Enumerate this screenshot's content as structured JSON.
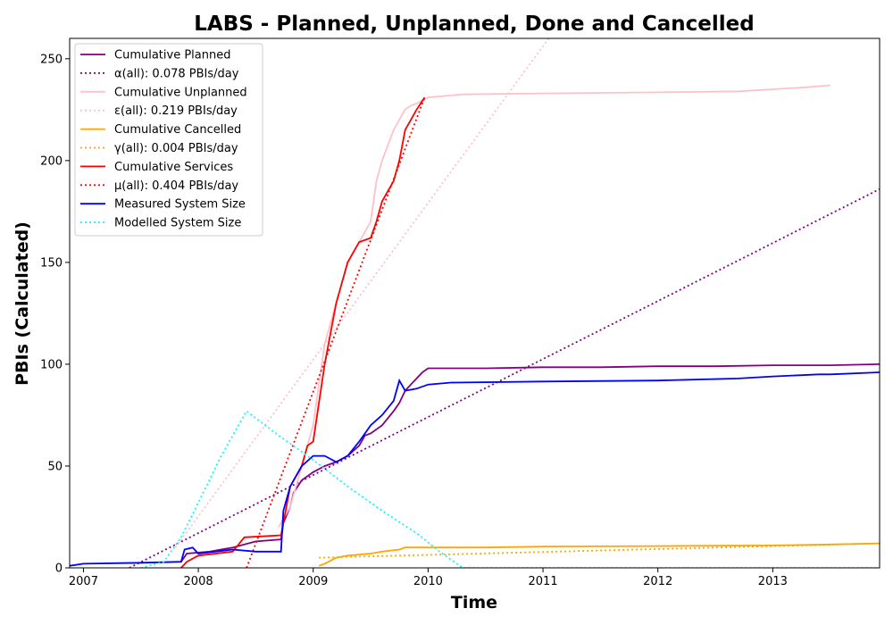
{
  "chart_data": {
    "type": "line",
    "title": "LABS - Planned, Unplanned, Done  and Cancelled",
    "xlabel": "Time",
    "ylabel": "PBIs (Calculated)",
    "xlim": [
      2006.88,
      2013.93
    ],
    "ylim": [
      0,
      260
    ],
    "x_ticks": [
      2007,
      2008,
      2009,
      2010,
      2011,
      2012,
      2013
    ],
    "x_tick_labels": [
      "2007",
      "2008",
      "2009",
      "2010",
      "2011",
      "2012",
      "2013"
    ],
    "y_ticks": [
      0,
      50,
      100,
      150,
      200,
      250
    ],
    "y_tick_labels": [
      "0",
      "50",
      "100",
      "150",
      "200",
      "250"
    ],
    "grid": false,
    "legend_position": "top-left",
    "series": [
      {
        "name": "Cumulative Planned",
        "color": "#800080",
        "style": "solid",
        "x": [
          2007.85,
          2007.9,
          2008.1,
          2008.3,
          2008.5,
          2008.72,
          2008.74,
          2008.8,
          2008.83,
          2008.9,
          2009.0,
          2009.1,
          2009.2,
          2009.3,
          2009.4,
          2009.45,
          2009.5,
          2009.6,
          2009.7,
          2009.75,
          2009.8,
          2009.85,
          2009.9,
          2009.95,
          2010.0,
          2010.5,
          2011.0,
          2011.5,
          2012.0,
          2012.5,
          2013.0,
          2013.5,
          2013.93
        ],
        "y": [
          3,
          7,
          8,
          10,
          13,
          14,
          22,
          30,
          37,
          43,
          47,
          50,
          52,
          55,
          60,
          65,
          66,
          70,
          77,
          81,
          87,
          90,
          93,
          96,
          98,
          98,
          98.5,
          98.5,
          99,
          99,
          99.5,
          99.5,
          100
        ]
      },
      {
        "name": "α(all): 0.078 PBIs/day",
        "color": "#800080",
        "style": "dotted",
        "x": [
          2007.4,
          2013.93
        ],
        "y": [
          0,
          186
        ]
      },
      {
        "name": "Cumulative Unplanned",
        "color": "#ffc0cb",
        "style": "solid",
        "x": [
          2008.7,
          2008.8,
          2008.9,
          2009.0,
          2009.1,
          2009.2,
          2009.3,
          2009.4,
          2009.5,
          2009.55,
          2009.6,
          2009.7,
          2009.75,
          2009.8,
          2009.85,
          2009.9,
          2010.0,
          2010.3,
          2011.0,
          2012.0,
          2012.7,
          2013.0,
          2013.3,
          2013.5
        ],
        "y": [
          20,
          30,
          50,
          70,
          110,
          130,
          150,
          160,
          170,
          190,
          200,
          215,
          220,
          225,
          227,
          228,
          231,
          232.5,
          233,
          233.5,
          234,
          235,
          236,
          237
        ]
      },
      {
        "name": "ε(all): 0.219 PBIs/day",
        "color": "#ffc0cb",
        "style": "dotted",
        "x": [
          2007.8,
          2011.05
        ],
        "y": [
          10,
          260
        ]
      },
      {
        "name": "Cumulative Cancelled",
        "color": "#ffa500",
        "style": "solid",
        "x": [
          2009.05,
          2009.1,
          2009.2,
          2009.3,
          2009.5,
          2009.6,
          2009.75,
          2009.8,
          2010.0,
          2010.5,
          2011.0,
          2012.0,
          2013.0,
          2013.5,
          2013.93
        ],
        "y": [
          1,
          2,
          5,
          6,
          7,
          8,
          9,
          10,
          10,
          10,
          10.5,
          10.7,
          11,
          11.5,
          12
        ]
      },
      {
        "name": "γ(all): 0.004 PBIs/day",
        "color": "#ffa500",
        "style": "dotted",
        "x": [
          2009.05,
          2013.93
        ],
        "y": [
          5,
          12
        ]
      },
      {
        "name": "Cumulative Services",
        "color": "#ff0000",
        "style": "solid",
        "x": [
          2007.85,
          2007.9,
          2008.0,
          2008.3,
          2008.4,
          2008.72,
          2008.74,
          2008.8,
          2008.85,
          2008.9,
          2008.95,
          2009.0,
          2009.1,
          2009.2,
          2009.3,
          2009.4,
          2009.5,
          2009.55,
          2009.6,
          2009.7,
          2009.75,
          2009.8,
          2009.9,
          2009.97
        ],
        "y": [
          0,
          3,
          6,
          8,
          15,
          16,
          22,
          40,
          45,
          50,
          60,
          62,
          100,
          130,
          150,
          160,
          162,
          170,
          180,
          190,
          200,
          215,
          225,
          231
        ]
      },
      {
        "name": "μ(all): 0.404 PBIs/day",
        "color": "#ff0000",
        "style": "dotted",
        "x": [
          2008.42,
          2009.97
        ],
        "y": [
          0,
          231
        ]
      },
      {
        "name": "Measured System Size",
        "color": "#0000ff",
        "style": "solid",
        "x": [
          2006.88,
          2007.0,
          2007.5,
          2007.85,
          2007.88,
          2007.95,
          2008.0,
          2008.3,
          2008.5,
          2008.72,
          2008.74,
          2008.8,
          2008.85,
          2008.9,
          2009.0,
          2009.1,
          2009.2,
          2009.3,
          2009.4,
          2009.5,
          2009.6,
          2009.7,
          2009.75,
          2009.8,
          2009.9,
          2010.0,
          2010.2,
          2011.0,
          2012.0,
          2012.7,
          2013.0,
          2013.4,
          2013.5,
          2013.93
        ],
        "y": [
          1,
          2,
          2.5,
          3,
          9,
          10,
          7,
          9,
          8,
          8,
          28,
          40,
          45,
          50,
          55,
          55,
          52,
          55,
          62,
          70,
          75,
          82,
          92,
          87,
          88,
          90,
          91,
          91.5,
          92,
          93,
          94,
          95,
          95,
          96
        ]
      },
      {
        "name": "Modelled System Size",
        "color": "#00ffff",
        "style": "dotted",
        "x": [
          2007.5,
          2007.7,
          2007.85,
          2008.0,
          2008.2,
          2008.42,
          2008.7,
          2009.0,
          2009.3,
          2009.6,
          2009.9,
          2010.1,
          2010.3,
          2011.0,
          2012.0,
          2013.0,
          2013.93
        ],
        "y": [
          0,
          3,
          15,
          32,
          55,
          77,
          65,
          53,
          40,
          28,
          17,
          8,
          0,
          0,
          0,
          0,
          0
        ]
      }
    ]
  }
}
